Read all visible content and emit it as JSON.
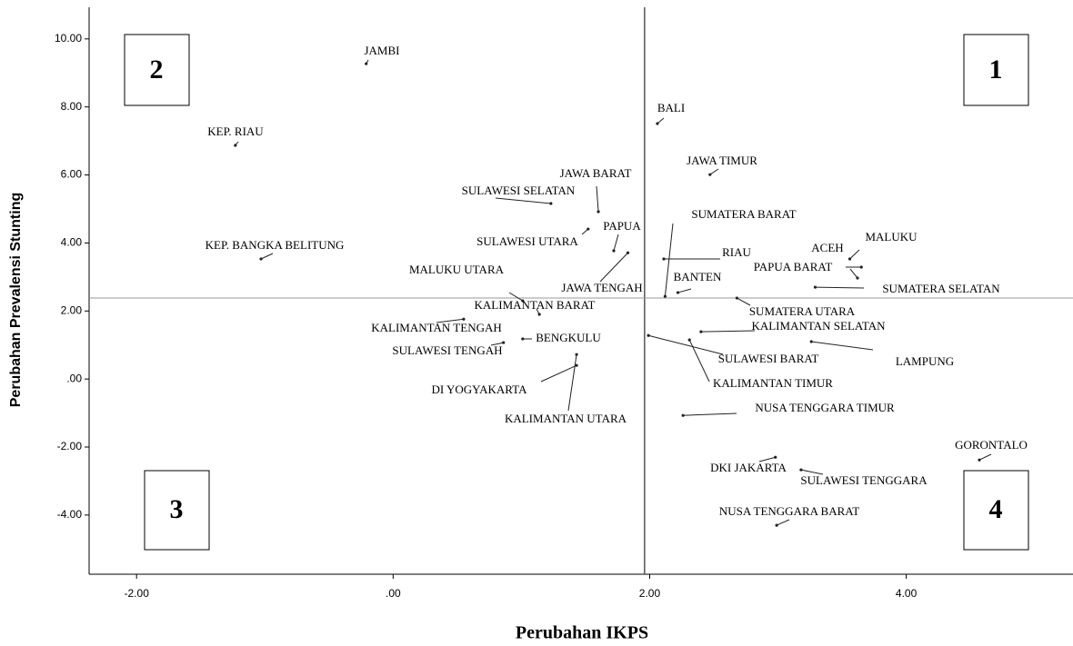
{
  "chart_data": {
    "type": "scatter",
    "x_label": "Perubahan IKPS",
    "y_label": "Perubahan Prevalensi Stunting",
    "labels": [
      "JAMBI",
      "KEP. RIAU",
      "KEP. BANGKA BELITUNG",
      "BALI",
      "JAWA TIMUR",
      "JAWA BARAT",
      "SULAWESI SELATAN",
      "PAPUA",
      "SULAWESI UTARA",
      "SUMATERA BARAT",
      "RIAU",
      "MALUKU",
      "ACEH",
      "PAPUA BARAT",
      "SUMATERA SELATAN",
      "BANTEN",
      "JAWA TENGAH",
      "MALUKU UTARA",
      "KALIMANTAN BARAT",
      "SUMATERA UTARA",
      "KALIMANTAN TENGAH",
      "KALIMANTAN SELATAN",
      "BENGKULU",
      "SULAWESI TENGAH",
      "LAMPUNG",
      "SULAWESI BARAT",
      "KALIMANTAN TIMUR",
      "DI YOGYAKARTA",
      "KALIMANTAN UTARA",
      "NUSA TENGGARA TIMUR",
      "GORONTALO",
      "DKI JAKARTA",
      "SULAWESI TENGGARA",
      "NUSA TENGGARA BARAT"
    ],
    "x": [
      -0.21,
      -1.23,
      -1.03,
      2.06,
      2.47,
      1.6,
      1.23,
      1.72,
      1.52,
      2.12,
      2.11,
      3.56,
      3.62,
      3.65,
      3.29,
      2.22,
      1.83,
      1.01,
      1.14,
      2.68,
      0.55,
      2.4,
      1.01,
      0.86,
      3.26,
      1.99,
      2.31,
      1.43,
      1.43,
      2.26,
      4.57,
      2.98,
      3.18,
      2.99
    ],
    "values": [
      9.27,
      6.87,
      3.53,
      7.51,
      6.01,
      4.92,
      5.16,
      3.77,
      4.41,
      2.43,
      3.53,
      3.53,
      2.97,
      3.29,
      2.7,
      2.54,
      3.71,
      2.3,
      1.9,
      2.38,
      1.76,
      1.39,
      1.18,
      1.07,
      1.1,
      1.28,
      1.15,
      0.4,
      0.72,
      -1.07,
      -2.38,
      -2.3,
      -2.67,
      -4.3
    ],
    "color": "#222222",
    "xlim": [
      -2.37,
      5.3
    ],
    "ylim": [
      -5.74,
      10.93
    ],
    "xticks": [
      {
        "value": -2,
        "label": "-2.00"
      },
      {
        "value": 0,
        "label": ".00"
      },
      {
        "value": 2,
        "label": "2.00"
      },
      {
        "value": 4,
        "label": "4.00"
      }
    ],
    "yticks": [
      {
        "value": 10,
        "label": "10.00"
      },
      {
        "value": 8,
        "label": "8.00"
      },
      {
        "value": 6,
        "label": "6.00"
      },
      {
        "value": 4,
        "label": "4.00"
      },
      {
        "value": 2,
        "label": "2.00"
      },
      {
        "value": 0,
        "label": ".00"
      },
      {
        "value": -2,
        "label": "-2.00"
      },
      {
        "value": -4,
        "label": "-4.00"
      }
    ],
    "reference_x": 1.96,
    "reference_y": 2.38,
    "grid": false,
    "quadrants": [
      "1",
      "2",
      "3",
      "4"
    ]
  }
}
